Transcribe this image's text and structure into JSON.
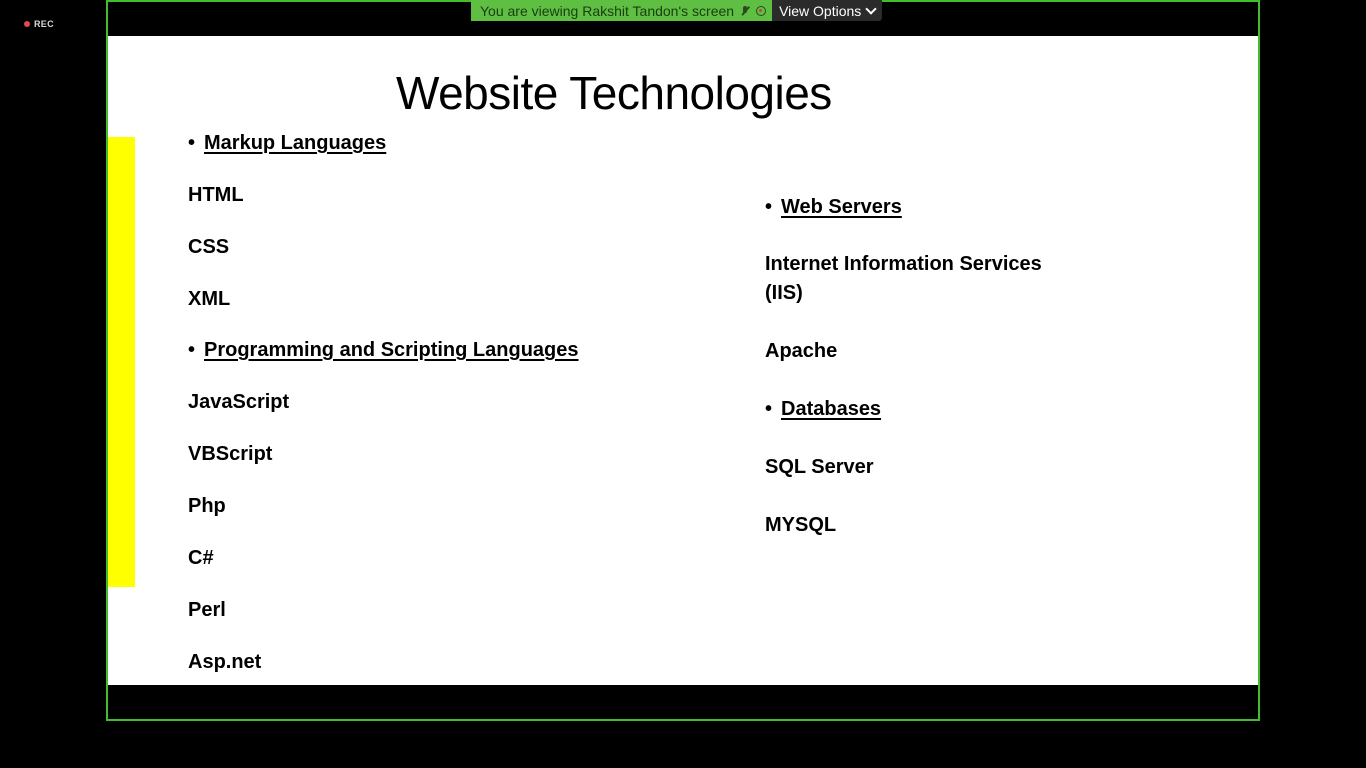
{
  "recording": {
    "label": "REC"
  },
  "banner": {
    "message": "You are viewing Rakshit Tandon's screen",
    "view_options": "View Options"
  },
  "slide": {
    "title": "Website Technologies",
    "left_column": {
      "heading1": "Markup Languages",
      "item1": "HTML",
      "item2": "CSS",
      "item3": "XML",
      "heading2": "Programming and Scripting Languages",
      "item4": "JavaScript",
      "item5": "VBScript",
      "item6": "Php",
      "item7": "C#",
      "item8": "Perl",
      "item9": "Asp.net"
    },
    "right_column": {
      "heading1": "Web Servers",
      "item1": "Internet Information Services (IIS)",
      "item2": "Apache",
      "heading2": "Databases",
      "item3": "SQL Server",
      "item4": "MYSQL"
    },
    "bullet": "•"
  },
  "colors": {
    "share_border": "#3fbf29",
    "banner_bg": "#5fbf42",
    "highlight": "#ffff00"
  }
}
